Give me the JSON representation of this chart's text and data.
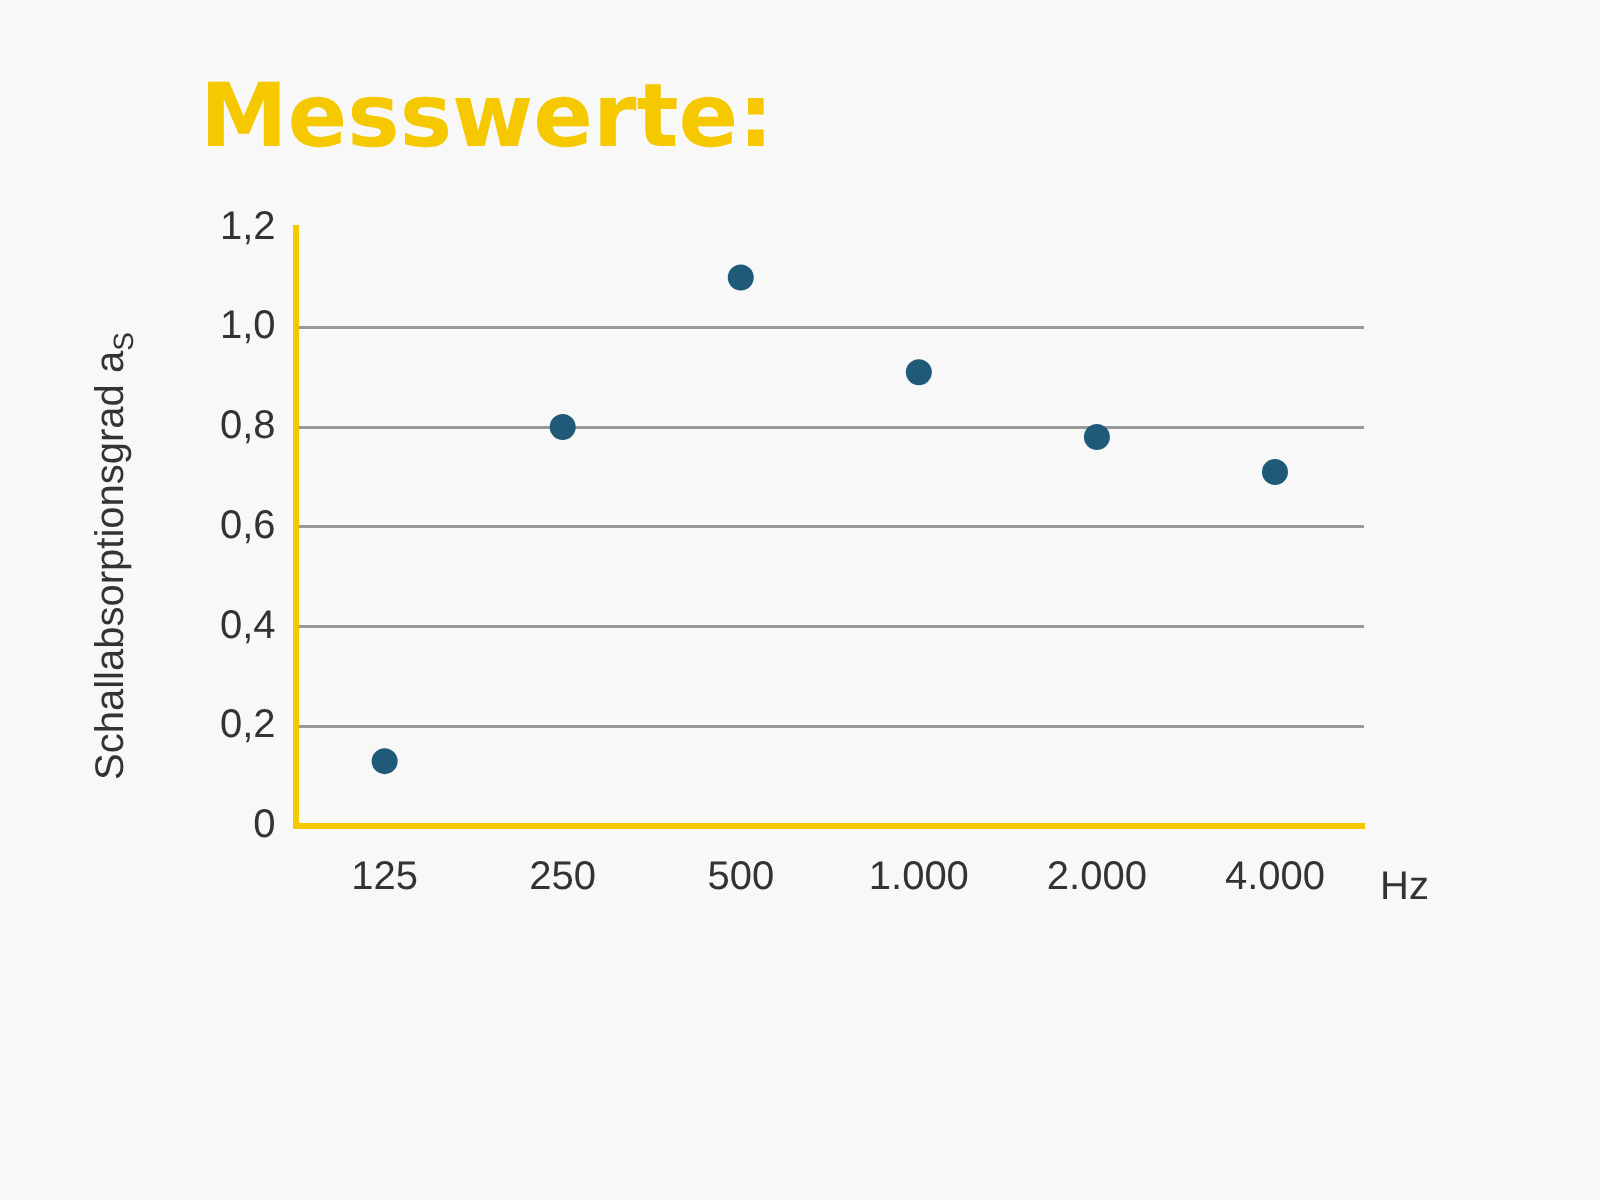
{
  "chart_data": {
    "type": "scatter",
    "title": "Messwerte:",
    "xlabel": "Hz",
    "ylabel": "Schallabsorptionsgrad a$_{S}$",
    "categories": [
      "125",
      "250",
      "500",
      "1.000",
      "2.000",
      "4.000"
    ],
    "series": [
      {
        "color": "#1f5a78",
        "values": [
          0.13,
          0.8,
          1.1,
          0.91,
          0.78,
          0.71
        ]
      }
    ],
    "ylim": [
      0,
      1.2
    ],
    "yticks": [
      0,
      {
        "value": 0.2,
        "label": "0,2"
      },
      {
        "value": 0.4,
        "label": "0,4"
      },
      {
        "value": 0.6,
        "label": "0,6"
      },
      {
        "value": 0.8,
        "label": "0,8"
      },
      {
        "value": 1.0,
        "label": "1,0"
      },
      {
        "value": 1.2,
        "label": "1,2"
      }
    ],
    "grid": "y",
    "legend": false,
    "marker": "circle"
  }
}
